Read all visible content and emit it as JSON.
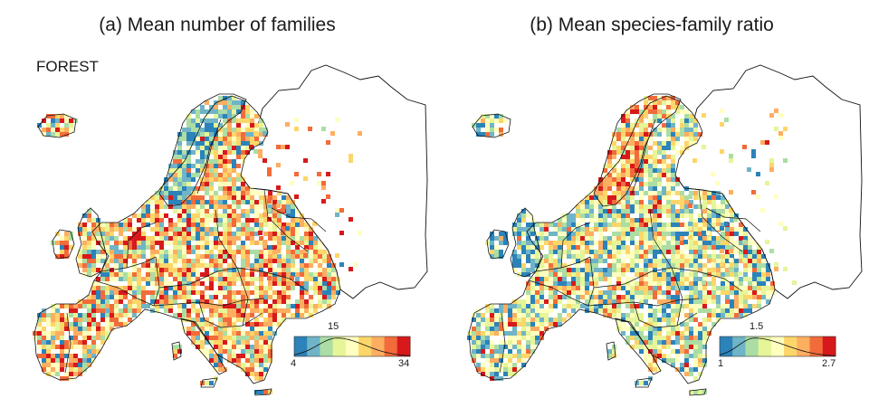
{
  "habitat_label": "FOREST",
  "panels": [
    {
      "id": "a",
      "title": "(a) Mean number of families",
      "legend": {
        "min": "4",
        "mid": "15",
        "max": "34",
        "midFrac": 0.37
      },
      "palette": [
        "#2b83ba",
        "#6fb4c7",
        "#abdda4",
        "#e6f598",
        "#ffffbf",
        "#fdd66a",
        "#fdae61",
        "#f26b3a",
        "#d7191c"
      ],
      "weights": [
        1,
        1,
        1.6,
        1.2,
        2.4,
        2.8,
        2.6,
        2.4,
        1.6
      ]
    },
    {
      "id": "b",
      "title": "(b) Mean species-family ratio",
      "legend": {
        "min": "1",
        "mid": "1.5",
        "max": "2.7",
        "midFrac": 0.3
      },
      "palette": [
        "#2b83ba",
        "#6fb4c7",
        "#abdda4",
        "#e6f598",
        "#ffffbf",
        "#fdd66a",
        "#fdae61",
        "#f26b3a",
        "#d7191c"
      ],
      "weights": [
        1.6,
        1.8,
        2.4,
        2.6,
        2.8,
        1.8,
        1.2,
        0.8,
        0.4
      ]
    }
  ]
}
